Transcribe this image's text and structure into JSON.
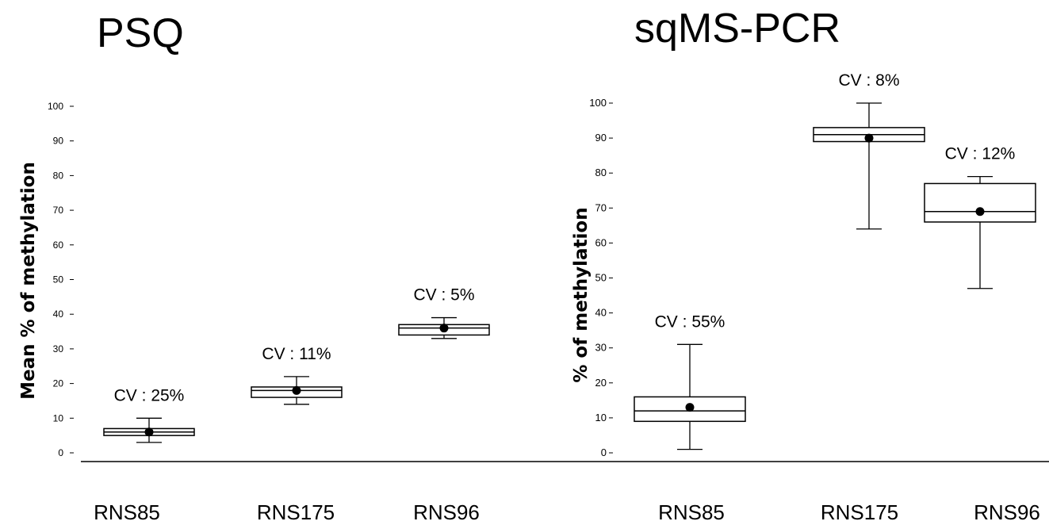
{
  "chart_data": [
    {
      "type": "box",
      "title": "PSQ",
      "ylabel": "Mean % of methylation",
      "xlabel": "",
      "ylim": [
        0,
        100
      ],
      "yticks": [
        0,
        10,
        20,
        30,
        40,
        50,
        60,
        70,
        80,
        90,
        100
      ],
      "categories": [
        "RNS85",
        "RNS175",
        "RNS96"
      ],
      "boxes": [
        {
          "category": "RNS85",
          "min": 3,
          "q1": 5,
          "median": 6,
          "q3": 7,
          "max": 10,
          "mean": 6,
          "annotation": "CV : 25%"
        },
        {
          "category": "RNS175",
          "min": 14,
          "q1": 16,
          "median": 18,
          "q3": 19,
          "max": 22,
          "mean": 18,
          "annotation": "CV : 11%"
        },
        {
          "category": "RNS96",
          "min": 33,
          "q1": 34,
          "median": 36,
          "q3": 37,
          "max": 39,
          "mean": 36,
          "annotation": "CV : 5%"
        }
      ],
      "grid": false
    },
    {
      "type": "box",
      "title": "sqMS-PCR",
      "ylabel": "% of methylation",
      "xlabel": "",
      "ylim": [
        0,
        100
      ],
      "yticks": [
        0,
        10,
        20,
        30,
        40,
        50,
        60,
        70,
        80,
        90,
        100
      ],
      "categories": [
        "RNS85",
        "RNS175",
        "RNS96"
      ],
      "boxes": [
        {
          "category": "RNS85",
          "min": 1,
          "q1": 9,
          "median": 12,
          "q3": 16,
          "max": 31,
          "mean": 13,
          "annotation": "CV : 55%"
        },
        {
          "category": "RNS175",
          "min": 64,
          "q1": 89,
          "median": 91,
          "q3": 93,
          "max": 100,
          "mean": 90,
          "annotation": "CV : 8%"
        },
        {
          "category": "RNS96",
          "min": 47,
          "q1": 66,
          "median": 69,
          "q3": 77,
          "max": 79,
          "mean": 69,
          "annotation": "CV : 12%"
        }
      ],
      "grid": false
    }
  ]
}
